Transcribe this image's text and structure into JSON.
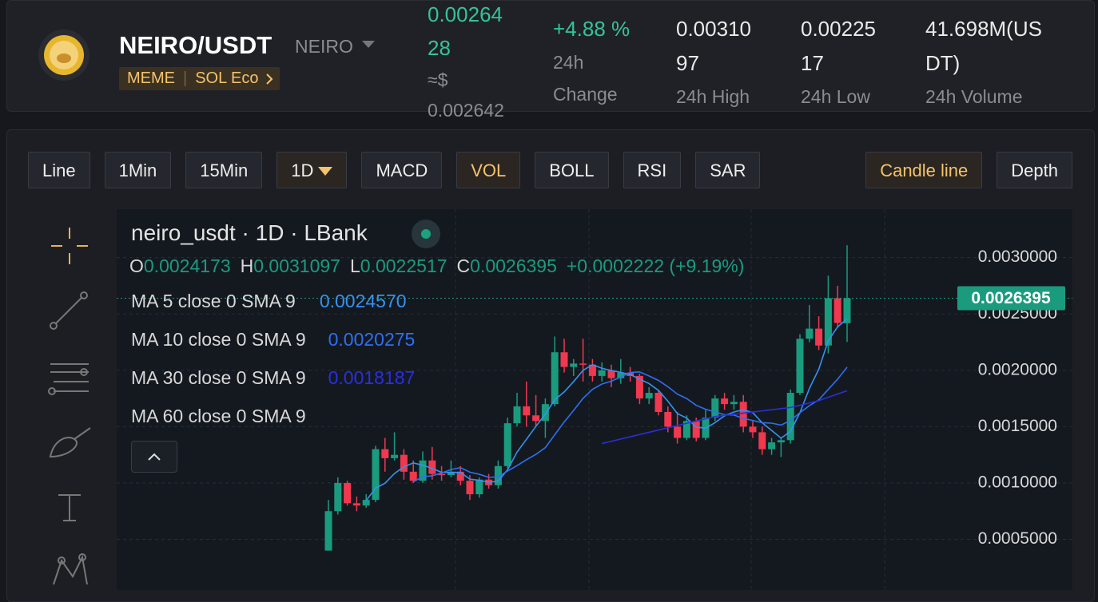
{
  "header": {
    "pair": "NEIRO/USDT",
    "base": "NEIRO",
    "tags": [
      "MEME",
      "SOL Eco"
    ],
    "price": "0.0026428",
    "price_usd_prefix": "≈$",
    "price_usd": "0.002642",
    "stats": [
      {
        "value": "+4.88 %",
        "label": "24h Change"
      },
      {
        "value": "0.0031097",
        "label": "24h High"
      },
      {
        "value": "0.0022517",
        "label": "24h Low"
      },
      {
        "value": "41.698M(USDT)",
        "label": "24h Volume"
      }
    ]
  },
  "toolbar": {
    "buttons": [
      "Line",
      "1Min",
      "15Min",
      "1D",
      "MACD",
      "VOL",
      "BOLL",
      "RSI",
      "SAR"
    ],
    "right_buttons": [
      "Candle line",
      "Depth"
    ]
  },
  "chart_data": {
    "type": "candlestick",
    "title": "neiro_usdt · 1D · LBank",
    "ohlc_keys": [
      "O",
      "H",
      "L",
      "C"
    ],
    "change_label": "+0.0002222 (+9.19%)",
    "up_color": "#1b9b7e",
    "down_color": "#f0384f",
    "open": [
      0.0004,
      0.00075,
      0.001,
      0.00082,
      0.0008,
      0.00085,
      0.0013,
      0.00122,
      0.00125,
      0.0011,
      0.00102,
      0.0012,
      0.00108,
      0.00107,
      0.0011,
      0.00102,
      0.0009,
      0.00103,
      0.00098,
      0.00115,
      0.00153,
      0.00168,
      0.0016,
      0.00155,
      0.0017,
      0.00216,
      0.00203,
      0.00206,
      0.00205,
      0.00195,
      0.002,
      0.00193,
      0.00198,
      0.00195,
      0.00175,
      0.0018,
      0.00163,
      0.0015,
      0.0014,
      0.00155,
      0.0014,
      0.00158,
      0.00175,
      0.0017,
      0.00172,
      0.0015,
      0.00145,
      0.0013,
      0.00136,
      0.00138,
      0.0018,
      0.00228,
      0.00237,
      0.00222,
      0.00264,
      0.0024173
    ],
    "high": [
      0.00085,
      0.00105,
      0.00102,
      0.00088,
      0.0009,
      0.00133,
      0.0014,
      0.00145,
      0.0013,
      0.0012,
      0.00128,
      0.00132,
      0.00115,
      0.0012,
      0.00115,
      0.00107,
      0.00105,
      0.00108,
      0.0012,
      0.00158,
      0.0018,
      0.0019,
      0.00178,
      0.00175,
      0.0023,
      0.00228,
      0.0021,
      0.00228,
      0.0021,
      0.00207,
      0.00205,
      0.0021,
      0.00203,
      0.00197,
      0.00185,
      0.00183,
      0.00168,
      0.00163,
      0.0016,
      0.00158,
      0.00165,
      0.00178,
      0.0018,
      0.00178,
      0.00178,
      0.00155,
      0.0015,
      0.0014,
      0.0014,
      0.00183,
      0.00232,
      0.00258,
      0.00248,
      0.00284,
      0.00275,
      0.0031097
    ],
    "low": [
      0.0004,
      0.00072,
      0.0008,
      0.00075,
      0.00078,
      0.00083,
      0.0011,
      0.0012,
      0.00103,
      0.001,
      0.001,
      0.00103,
      0.00102,
      0.00105,
      0.00098,
      0.00085,
      0.00087,
      0.00095,
      0.00095,
      0.00113,
      0.0015,
      0.0015,
      0.0015,
      0.0014,
      0.00168,
      0.00198,
      0.00195,
      0.0019,
      0.0019,
      0.0019,
      0.00185,
      0.00188,
      0.0019,
      0.0017,
      0.0017,
      0.0016,
      0.00145,
      0.00135,
      0.00138,
      0.00137,
      0.00138,
      0.00155,
      0.00165,
      0.00165,
      0.00145,
      0.0014,
      0.00125,
      0.00125,
      0.00123,
      0.00135,
      0.00178,
      0.00225,
      0.00218,
      0.00215,
      0.00238,
      0.0022517
    ],
    "close": [
      0.00075,
      0.001,
      0.00082,
      0.0008,
      0.00085,
      0.0013,
      0.00122,
      0.00125,
      0.0011,
      0.00102,
      0.0012,
      0.00108,
      0.00107,
      0.0011,
      0.00102,
      0.0009,
      0.00103,
      0.00098,
      0.00115,
      0.00153,
      0.00168,
      0.0016,
      0.00155,
      0.0017,
      0.00216,
      0.00203,
      0.00206,
      0.00205,
      0.00195,
      0.002,
      0.00193,
      0.00198,
      0.00195,
      0.00175,
      0.0018,
      0.00163,
      0.0015,
      0.0014,
      0.00155,
      0.0014,
      0.00158,
      0.00175,
      0.0017,
      0.00172,
      0.0015,
      0.00145,
      0.0013,
      0.00136,
      0.00138,
      0.0018,
      0.00228,
      0.00237,
      0.00222,
      0.00264,
      0.00242,
      0.0026395
    ],
    "series": [
      {
        "name": "MA 5 close 0 SMA 9",
        "color": "#3592f2",
        "value_label": "0.0024570",
        "values": [
          null,
          null,
          null,
          null,
          0.000844,
          0.000954,
          0.000998,
          0.001084,
          0.001144,
          0.001178,
          0.001158,
          0.00113,
          0.001094,
          0.001094,
          0.001094,
          0.001034,
          0.001024,
          0.001006,
          0.001016,
          0.001118,
          0.001274,
          0.001388,
          0.001502,
          0.001612,
          0.001738,
          0.001808,
          0.0019,
          0.002,
          0.00205,
          0.002018,
          0.001998,
          0.001982,
          0.001962,
          0.001922,
          0.001882,
          0.001822,
          0.001726,
          0.001616,
          0.001576,
          0.001496,
          0.001486,
          0.001536,
          0.001596,
          0.00163,
          0.00165,
          0.001624,
          0.001534,
          0.001466,
          0.001398,
          0.001458,
          0.001624,
          0.001838,
          0.00201,
          0.002262,
          0.002386,
          0.002457
        ]
      },
      {
        "name": "MA 10 close 0 SMA 9",
        "color": "#2f6ff0",
        "value_label": "0.0020275",
        "values": [
          null,
          null,
          null,
          null,
          null,
          null,
          null,
          null,
          null,
          0.001011,
          0.001056,
          0.001064,
          0.001089,
          0.001119,
          0.001136,
          0.001096,
          0.001077,
          0.00105,
          0.001055,
          0.001106,
          0.001154,
          0.001206,
          0.001254,
          0.001314,
          0.001428,
          0.001541,
          0.001644,
          0.001751,
          0.001831,
          0.001878,
          0.001903,
          0.001941,
          0.001981,
          0.001986,
          0.00195,
          0.00191,
          0.001854,
          0.001789,
          0.001749,
          0.001689,
          0.001654,
          0.001631,
          0.001606,
          0.001603,
          0.001573,
          0.001555,
          0.001535,
          0.001531,
          0.001514,
          0.001554,
          0.001624,
          0.001686,
          0.001738,
          0.00183,
          0.001922,
          0.0020275
        ]
      },
      {
        "name": "MA 30 close 0 SMA 9",
        "color": "#2b2fdc",
        "value_label": "0.0018187",
        "values": [
          null,
          null,
          null,
          null,
          null,
          null,
          null,
          null,
          null,
          null,
          null,
          null,
          null,
          null,
          null,
          null,
          null,
          null,
          null,
          null,
          null,
          null,
          null,
          null,
          null,
          null,
          null,
          null,
          null,
          0.00135,
          0.00137,
          0.00139,
          0.00141,
          0.00143,
          0.00145,
          0.00147,
          0.00149,
          0.00151,
          0.00153,
          0.00155,
          0.00157,
          0.00159,
          0.0016,
          0.00161,
          0.00162,
          0.00163,
          0.00164,
          0.00165,
          0.00166,
          0.00167,
          0.00169,
          0.00171,
          0.00173,
          0.00176,
          0.00179,
          0.0018187
        ]
      },
      {
        "name": "MA 60 close 0 SMA 9"
      }
    ],
    "ylim": [
      5e-05,
      0.00343
    ],
    "yticks": [
      {
        "value": 0.0005,
        "label": "0.0005000"
      },
      {
        "value": 0.001,
        "label": "0.0010000"
      },
      {
        "value": 0.0015,
        "label": "0.0015000"
      },
      {
        "value": 0.002,
        "label": "0.0020000"
      },
      {
        "value": 0.0025,
        "label": "0.0025000"
      },
      {
        "value": 0.003,
        "label": "0.0030000"
      }
    ],
    "grid": true
  }
}
